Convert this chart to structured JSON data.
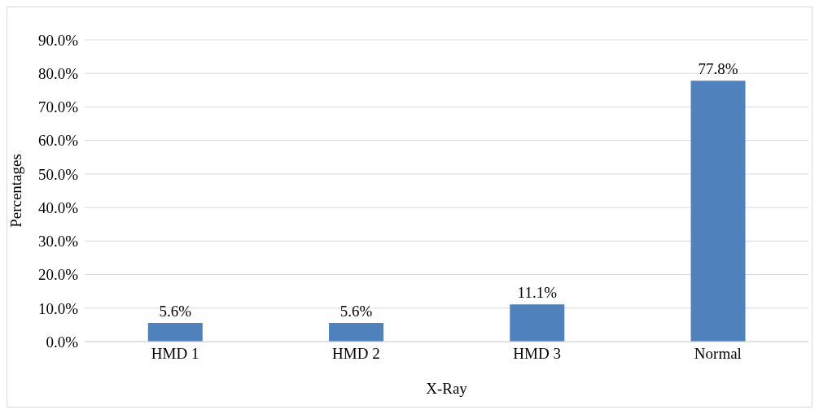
{
  "chart_data": {
    "type": "bar",
    "xlabel": "X-Ray",
    "ylabel": "Percentages",
    "categories": [
      "HMD 1",
      "HMD 2",
      "HMD 3",
      "Normal"
    ],
    "values": [
      5.6,
      5.6,
      11.1,
      77.8
    ],
    "value_labels": [
      "5.6%",
      "5.6%",
      "11.1%",
      "77.8%"
    ],
    "color": "#4f81bd",
    "ylim": [
      0,
      90
    ],
    "yticks": [
      {
        "value": 0,
        "label": "0.0%"
      },
      {
        "value": 10,
        "label": "10.0%"
      },
      {
        "value": 20,
        "label": "20.0%"
      },
      {
        "value": 30,
        "label": "30.0%"
      },
      {
        "value": 40,
        "label": "40.0%"
      },
      {
        "value": 50,
        "label": "50.0%"
      },
      {
        "value": 60,
        "label": "60.0%"
      },
      {
        "value": 70,
        "label": "70.0%"
      },
      {
        "value": 80,
        "label": "80.0%"
      },
      {
        "value": 90,
        "label": "90.0%"
      }
    ],
    "grid": "y",
    "legend": false
  }
}
